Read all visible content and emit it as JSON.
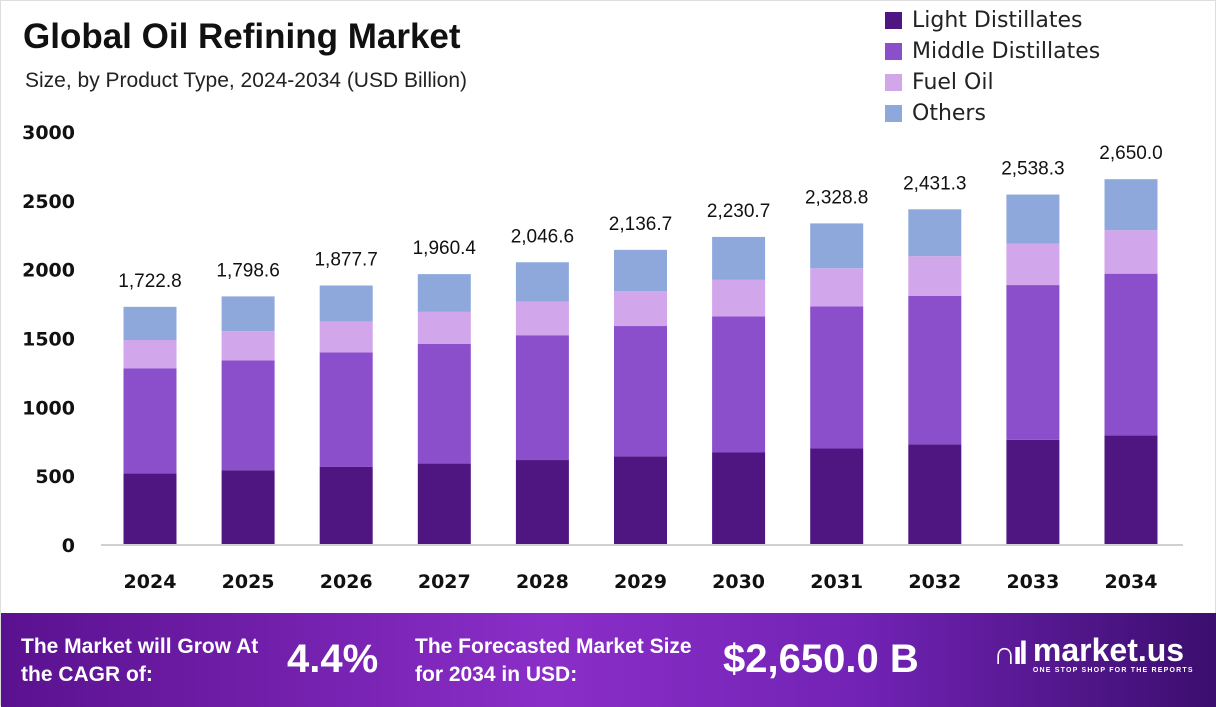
{
  "chart_data": {
    "type": "bar",
    "stacked": true,
    "title": "Global Oil Refining Market",
    "subtitle": "Size, by Product Type, 2024-2034 (USD Billion)",
    "categories": [
      "2024",
      "2025",
      "2026",
      "2027",
      "2028",
      "2029",
      "2030",
      "2031",
      "2032",
      "2033",
      "2034"
    ],
    "series": [
      {
        "name": "Light Distillates",
        "color": "#4f1682",
        "values": [
          513.4,
          536.0,
          559.6,
          584.2,
          609.9,
          636.7,
          664.7,
          694.0,
          724.5,
          756.4,
          789.7
        ]
      },
      {
        "name": "Middle Distillates",
        "color": "#8b4fcc",
        "values": [
          763.2,
          796.8,
          831.8,
          868.5,
          906.6,
          946.6,
          988.2,
          1031.7,
          1077.1,
          1124.5,
          1174.0
        ]
      },
      {
        "name": "Fuel Oil",
        "color": "#d2a6ea",
        "values": [
          205.0,
          214.0,
          223.4,
          233.3,
          243.5,
          254.3,
          265.5,
          277.1,
          289.3,
          302.1,
          315.4
        ]
      },
      {
        "name": "Others",
        "color": "#8fa8dc",
        "values": [
          241.2,
          251.8,
          262.9,
          274.4,
          286.6,
          299.1,
          312.3,
          326.0,
          340.4,
          355.3,
          370.9
        ]
      }
    ],
    "totals": [
      "1,722.8",
      "1,798.6",
      "1,877.7",
      "1,960.4",
      "2,046.6",
      "2,136.7",
      "2,230.7",
      "2,328.8",
      "2,431.3",
      "2,538.3",
      "2,650.0"
    ],
    "yticks": [
      "0",
      "500",
      "1000",
      "1500",
      "2000",
      "2500",
      "3000"
    ],
    "ylim": [
      0,
      3000
    ],
    "xlabel": "",
    "ylabel": "",
    "grid": false,
    "legend_position": "top-right"
  },
  "footer": {
    "cagr_label": "The Market will Grow At the CAGR of:",
    "cagr_value": "4.4%",
    "forecast_label": "The Forecasted Market Size for 2034 in USD:",
    "forecast_value": "$2,650.0 B",
    "brand": "market.us",
    "tagline": "ONE STOP SHOP FOR THE REPORTS"
  }
}
